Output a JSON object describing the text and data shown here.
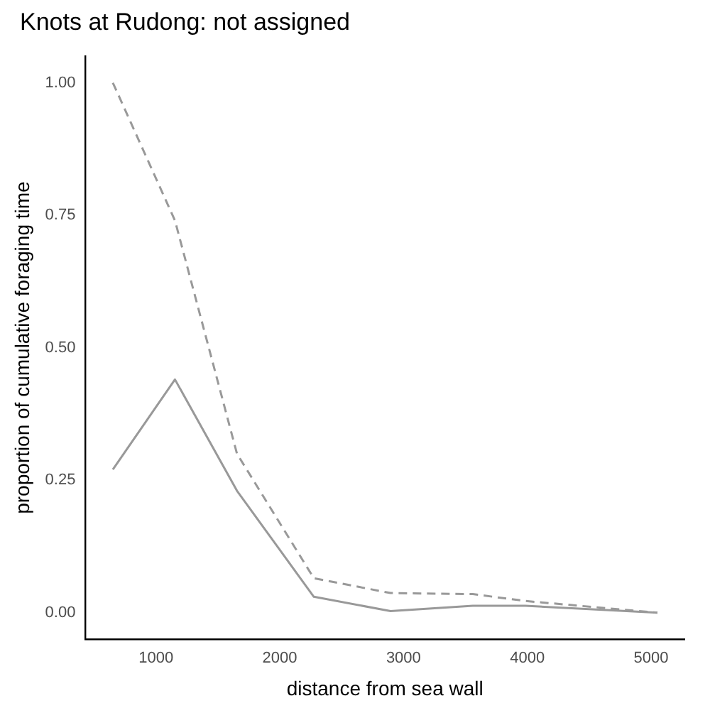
{
  "chart_data": {
    "type": "line",
    "title": "Knots at Rudong: not assigned",
    "xlabel": "distance from sea wall",
    "ylabel": "proportion of cumulative foraging time",
    "x": [
      651,
      1153,
      1654,
      2275,
      2895,
      3560,
      3985,
      5052
    ],
    "series": [
      {
        "color": "#999999",
        "line_style": "solid",
        "values": [
          0.27,
          0.44,
          0.23,
          0.03,
          0.003,
          0.013,
          0.013,
          0
        ]
      },
      {
        "color": "#999999",
        "line_style": "dashed",
        "values": [
          1,
          0.74,
          0.3,
          0.065,
          0.037,
          0.035,
          0.022,
          0
        ]
      }
    ],
    "xlim": [
      430,
      5270
    ],
    "xticks": [
      1000,
      2000,
      3000,
      4000,
      5000
    ],
    "ylim": [
      -0.05,
      1.05
    ],
    "yticks": [
      {
        "value": 0,
        "label": "0.00"
      },
      {
        "value": 0.25,
        "label": "0.25"
      },
      {
        "value": 0.5,
        "label": "0.50"
      },
      {
        "value": 0.75,
        "label": "0.75"
      },
      {
        "value": 1,
        "label": "1.00"
      }
    ],
    "grid": false,
    "legend": false,
    "marker": "none"
  }
}
